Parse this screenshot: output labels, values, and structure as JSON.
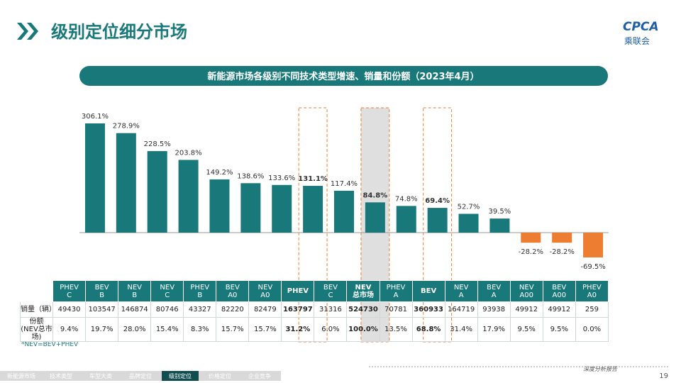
{
  "header": {
    "title": "级别定位细分市场",
    "logo": "CPCA",
    "logo_sub": "乘联会"
  },
  "chart_data": {
    "type": "bar",
    "title": "新能源市场各级别不同技术类型增速、销量和份额（2023年4月）",
    "categories": [
      "PHEV\nC",
      "BEV\nB",
      "NEV\nB",
      "NEV\nC",
      "PHEV\nB",
      "BEV\nA0",
      "NEV\nA0",
      "PHEV",
      "BEV\nC",
      "NEV\n总市场",
      "PHEV\nA",
      "BEV",
      "NEV\nA",
      "BEV\nA",
      "NEV\nA00",
      "BEV\nA00",
      "PHEV\nA0"
    ],
    "values": [
      306.1,
      278.9,
      228.5,
      203.8,
      149.2,
      138.6,
      133.6,
      131.1,
      117.4,
      84.8,
      74.8,
      69.4,
      52.7,
      39.5,
      -28.2,
      -28.2,
      -69.5
    ],
    "value_labels": [
      "306.1%",
      "278.9%",
      "228.5%",
      "203.8%",
      "149.2%",
      "138.6%",
      "133.6%",
      "131.1%",
      "117.4%",
      "84.8%",
      "74.8%",
      "69.4%",
      "52.7%",
      "39.5%",
      "-28.2%",
      "-28.2%",
      "-69.5%"
    ],
    "color": "#19797a",
    "negative_color": "#ed7d31"
  },
  "table": {
    "row_labels": [
      "销量（辆）",
      "份额\n(NEV总市场)"
    ],
    "sales": [
      49430,
      103547,
      146874,
      80746,
      43327,
      82220,
      82479,
      163797,
      31316,
      524730,
      70781,
      360933,
      164719,
      93938,
      49912,
      49912,
      259
    ],
    "share": [
      9.4,
      19.7,
      28.0,
      15.4,
      8.3,
      15.7,
      15.7,
      31.2,
      6.0,
      100.0,
      13.5,
      68.8,
      31.4,
      17.9,
      9.5,
      9.5,
      0.0
    ],
    "share_labels": [
      "9.4%",
      "19.7%",
      "28.0%",
      "15.4%",
      "8.3%",
      "15.7%",
      "15.7%",
      "31.2%",
      "6.0%",
      "100.0%",
      "13.5%",
      "68.8%",
      "31.4%",
      "17.9%",
      "9.5%",
      "9.5%",
      "0.0%"
    ]
  },
  "note": "*NEV=BEV+PHEV",
  "footer": {
    "nav": [
      "新能源市场",
      "技术类型",
      "车型大类",
      "品牌定位",
      "级别定位",
      "价格定位",
      "企业竞争"
    ],
    "report": "深度分析报告",
    "page": 19
  }
}
